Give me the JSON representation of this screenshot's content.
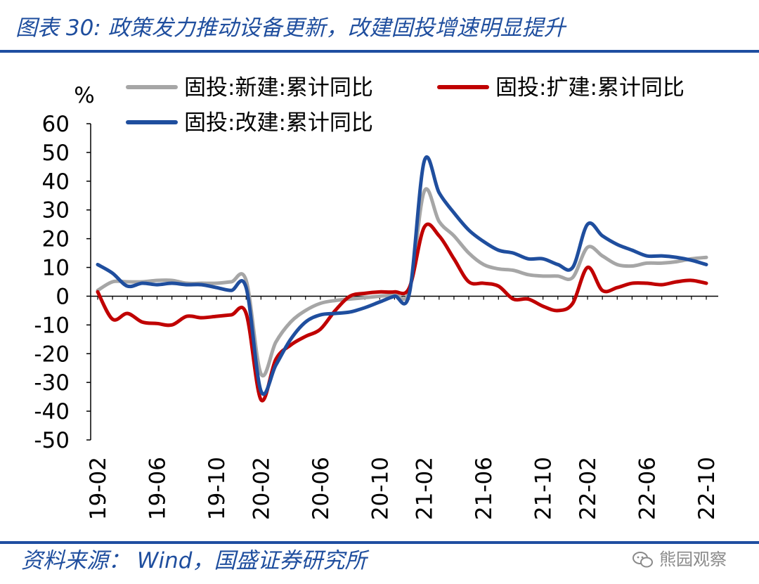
{
  "header": {
    "title": "图表 30:  政策发力推动设备更新，改建固投增速明显提升"
  },
  "footer": {
    "source": "资料来源： Wind，国盛证券研究所",
    "watermark": "熊园观察"
  },
  "colors": {
    "accent": "#1f4ea1",
    "new_build": "#a6a6a6",
    "expansion": "#c00000",
    "renovation": "#1f4e9e"
  },
  "chart_data": {
    "type": "line",
    "ylabel": "%",
    "ylim": [
      -50,
      60
    ],
    "yticks": [
      60,
      50,
      40,
      30,
      20,
      10,
      0,
      -10,
      -20,
      -30,
      -40,
      -50
    ],
    "x": [
      "19-02",
      "19-03",
      "19-04",
      "19-05",
      "19-06",
      "19-07",
      "19-08",
      "19-09",
      "19-10",
      "19-11",
      "19-12",
      "20-02",
      "20-03",
      "20-04",
      "20-05",
      "20-06",
      "20-07",
      "20-08",
      "20-09",
      "20-10",
      "20-11",
      "20-12",
      "21-02",
      "21-03",
      "21-04",
      "21-05",
      "21-06",
      "21-07",
      "21-08",
      "21-09",
      "21-10",
      "21-11",
      "21-12",
      "22-02",
      "22-03",
      "22-04",
      "22-05",
      "22-06",
      "22-07",
      "22-08",
      "22-09",
      "22-10"
    ],
    "xtick_labels": [
      "19-02",
      "19-06",
      "19-10",
      "20-02",
      "20-06",
      "20-10",
      "21-02",
      "21-06",
      "21-10",
      "22-02",
      "22-06",
      "22-10"
    ],
    "series": [
      {
        "name": "固投:新建:累计同比",
        "values": [
          2,
          5,
          5,
          5,
          5.5,
          5.5,
          4.5,
          4.5,
          4.5,
          5,
          5.5,
          -27,
          -16,
          -9,
          -5,
          -2.5,
          -1.5,
          -1,
          -0.5,
          0,
          0.5,
          2,
          36.5,
          26,
          21,
          15,
          11,
          9.5,
          9,
          7.5,
          7,
          7,
          6.5,
          17,
          14,
          11,
          10.5,
          11.5,
          11.5,
          12,
          13,
          13.5
        ]
      },
      {
        "name": "固投:扩建:累计同比",
        "values": [
          1.5,
          -8,
          -6,
          -9,
          -9.5,
          -10,
          -7,
          -7.5,
          -7,
          -6.5,
          -6,
          -36,
          -22,
          -17,
          -14,
          -11.5,
          -5,
          0,
          1,
          1.5,
          1.5,
          3,
          24,
          21,
          13,
          5,
          4.5,
          3.5,
          -1,
          -1,
          -3.5,
          -5,
          -2.5,
          10,
          2,
          3,
          4.5,
          4.5,
          4,
          5,
          5.5,
          4.5
        ]
      },
      {
        "name": "固投:改建:累计同比",
        "values": [
          11,
          8,
          3.5,
          4.5,
          4,
          4.5,
          4,
          4,
          3,
          2,
          3,
          -33,
          -24,
          -15,
          -9,
          -6.5,
          -6,
          -5.5,
          -4,
          -2,
          0,
          1,
          47,
          36,
          29,
          23,
          19,
          16,
          15,
          13,
          13,
          11,
          10,
          25,
          21,
          18,
          16,
          14,
          14,
          13.5,
          12.5,
          11
        ]
      }
    ]
  }
}
